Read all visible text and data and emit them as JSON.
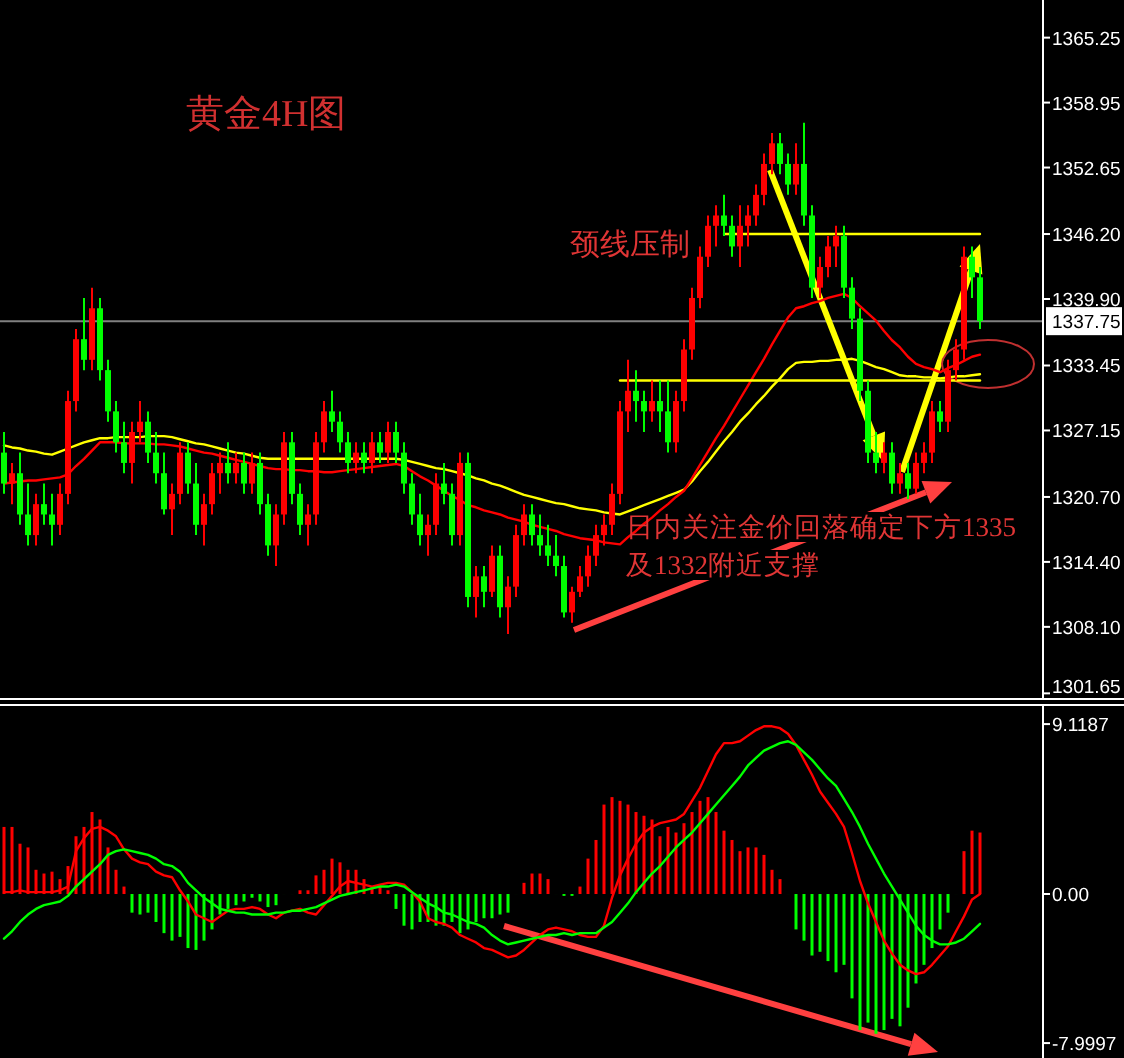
{
  "chart_data": [
    {
      "type": "candlestick",
      "title": "黄金4H图",
      "tick_labels": "y",
      "grid": false,
      "categories": [
        null,
        null,
        null,
        null,
        null,
        null,
        null,
        null,
        null,
        null,
        null,
        null,
        null,
        null,
        null,
        null,
        null,
        null,
        null,
        null,
        null,
        null,
        null,
        null,
        null,
        null,
        null,
        null,
        null,
        null,
        null,
        null,
        null,
        null,
        null,
        null,
        null,
        null,
        null,
        null,
        null,
        null,
        null,
        null,
        null,
        null,
        null,
        null,
        null,
        null,
        null,
        null,
        null,
        null,
        null,
        null,
        null,
        null,
        null,
        null,
        null,
        null,
        null,
        null,
        null,
        null,
        null,
        null,
        null,
        null,
        null,
        null,
        null,
        null,
        null,
        null,
        null,
        null,
        null,
        null,
        null,
        null,
        null,
        null,
        null,
        null,
        null,
        null,
        null,
        null,
        null,
        null,
        null,
        null,
        null,
        null,
        null,
        null,
        null,
        null,
        null,
        null,
        null,
        null,
        null,
        null,
        null,
        null,
        null,
        null,
        null,
        null,
        null,
        null,
        null,
        null,
        null,
        null,
        null,
        null,
        null,
        null,
        null
      ],
      "colors": [
        "#00ff00",
        "#ff0000",
        "#00ff00",
        "#00ff00",
        "#ff0000",
        "#00ff00",
        "#00ff00",
        "#ff0000",
        "#ff0000",
        "#ff0000",
        "#00ff00",
        "#ff0000",
        "#00ff00",
        "#00ff00",
        "#00ff00",
        "#00ff00",
        "#ff0000",
        "#ff0000",
        "#00ff00",
        "#00ff00",
        "#00ff00",
        "#ff0000",
        "#ff0000",
        "#00ff00",
        "#00ff00",
        "#ff0000",
        "#ff0000",
        "#ff0000",
        "#00ff00",
        "#ff0000",
        "#00ff00",
        "#ff0000",
        "#00ff00",
        "#00ff00",
        "#ff0000",
        "#ff0000",
        "#00ff00",
        "#00ff00",
        "#ff0000",
        "#ff0000",
        "#ff0000",
        "#00ff00",
        "#00ff00",
        "#00ff00",
        "#ff0000",
        "#00ff00",
        "#ff0000",
        "#00ff00",
        "#ff0000",
        "#00ff00",
        "#00ff00",
        "#00ff00",
        "#00ff00",
        "#ff0000",
        "#ff0000",
        "#00ff00",
        "#00ff00",
        "#ff0000",
        "#00ff00",
        "#ff0000",
        "#00ff00",
        "#ff0000",
        "#00ff00",
        "#ff0000",
        "#ff0000",
        "#ff0000",
        "#00ff00",
        "#00ff00",
        "#00ff00",
        "#00ff00",
        "#00ff00",
        "#ff0000",
        "#ff0000",
        "#ff0000",
        "#ff0000",
        "#ff0000",
        "#ff0000",
        "#ff0000",
        "#ff0000",
        "#00ff00",
        "#00ff00",
        "#ff0000",
        "#00ff00",
        "#00ff00",
        "#ff0000",
        "#ff0000",
        "#ff0000",
        "#ff0000",
        "#ff0000",
        "#ff0000",
        "#00ff00",
        "#00ff00",
        "#ff0000",
        "#ff0000",
        "#ff0000",
        "#ff0000",
        "#ff0000",
        "#00ff00",
        "#00ff00",
        "#ff0000",
        "#00ff00",
        "#00ff00",
        "#ff0000",
        "#ff0000",
        "#ff0000",
        "#00ff00",
        "#00ff00",
        "#00ff00",
        "#00ff00",
        "#00ff00",
        "#ff0000",
        "#00ff00",
        "#ff0000",
        "#00ff00",
        "#ff0000",
        "#ff0000",
        "#ff0000",
        "#00ff00",
        "#ff0000",
        "#ff0000",
        "#ff0000",
        "#00ff00",
        "#00ff00"
      ],
      "ohlc": [
        [
          1325,
          1327,
          1321,
          1322
        ],
        [
          1322,
          1324,
          1320,
          1323
        ],
        [
          1323,
          1325,
          1318,
          1319
        ],
        [
          1319,
          1322,
          1316,
          1317
        ],
        [
          1317,
          1321,
          1316,
          1320
        ],
        [
          1320,
          1322,
          1318,
          1319
        ],
        [
          1319,
          1321,
          1316,
          1318
        ],
        [
          1318,
          1322,
          1317,
          1321
        ],
        [
          1321,
          1331,
          1320,
          1330
        ],
        [
          1330,
          1337,
          1329,
          1336
        ],
        [
          1336,
          1340,
          1333,
          1334
        ],
        [
          1334,
          1341,
          1333,
          1339
        ],
        [
          1339,
          1340,
          1332,
          1333
        ],
        [
          1333,
          1334,
          1328,
          1329
        ],
        [
          1329,
          1330,
          1325,
          1326
        ],
        [
          1326,
          1328,
          1323,
          1324
        ],
        [
          1324,
          1328,
          1322,
          1327
        ],
        [
          1327,
          1330,
          1326,
          1328
        ],
        [
          1328,
          1329,
          1324,
          1325
        ],
        [
          1325,
          1327,
          1322,
          1323
        ],
        [
          1323,
          1325,
          1319,
          1319.5
        ],
        [
          1319.5,
          1322,
          1317,
          1321
        ],
        [
          1321,
          1326,
          1320,
          1325
        ],
        [
          1325,
          1326,
          1321,
          1322
        ],
        [
          1322,
          1324,
          1317,
          1318
        ],
        [
          1318,
          1321,
          1316,
          1320
        ],
        [
          1320,
          1324,
          1319,
          1323
        ],
        [
          1323,
          1325,
          1321,
          1324
        ],
        [
          1324,
          1326,
          1322,
          1323
        ],
        [
          1323,
          1325,
          1322,
          1324
        ],
        [
          1324,
          1325,
          1321,
          1322
        ],
        [
          1322,
          1325,
          1321,
          1324
        ],
        [
          1324,
          1325,
          1319,
          1320
        ],
        [
          1320,
          1321,
          1315,
          1316
        ],
        [
          1316,
          1320,
          1314,
          1319
        ],
        [
          1319,
          1327,
          1318,
          1326
        ],
        [
          1326,
          1327,
          1320,
          1321
        ],
        [
          1321,
          1322,
          1317,
          1318
        ],
        [
          1318,
          1320,
          1316,
          1319
        ],
        [
          1319,
          1327,
          1318,
          1326
        ],
        [
          1326,
          1330,
          1325,
          1329
        ],
        [
          1329,
          1331,
          1327,
          1328
        ],
        [
          1328,
          1329,
          1325,
          1326
        ],
        [
          1326,
          1327,
          1323,
          1324
        ],
        [
          1324,
          1326,
          1323,
          1325
        ],
        [
          1325,
          1326,
          1323,
          1324
        ],
        [
          1324,
          1327,
          1323,
          1326
        ],
        [
          1326,
          1327,
          1324,
          1325
        ],
        [
          1325,
          1328,
          1324,
          1327
        ],
        [
          1327,
          1328,
          1324,
          1325
        ],
        [
          1325,
          1326,
          1321,
          1322
        ],
        [
          1322,
          1323,
          1318,
          1319
        ],
        [
          1319,
          1321,
          1316,
          1317
        ],
        [
          1317,
          1319,
          1315,
          1318
        ],
        [
          1318,
          1323,
          1317,
          1322
        ],
        [
          1322,
          1324,
          1320,
          1321
        ],
        [
          1321,
          1322,
          1316,
          1317
        ],
        [
          1317,
          1325,
          1316,
          1324
        ],
        [
          1324,
          1325,
          1310,
          1311
        ],
        [
          1311,
          1314,
          1309,
          1313
        ],
        [
          1313,
          1314,
          1310,
          1311.5
        ],
        [
          1311.5,
          1316,
          1311,
          1315
        ],
        [
          1315,
          1316,
          1309,
          1310
        ],
        [
          1310,
          1313,
          1307.4,
          1312
        ],
        [
          1312,
          1318,
          1311,
          1317
        ],
        [
          1317,
          1320,
          1316,
          1319
        ],
        [
          1319,
          1320,
          1316,
          1317
        ],
        [
          1317,
          1319,
          1315,
          1316
        ],
        [
          1316,
          1318,
          1314,
          1315
        ],
        [
          1315,
          1317,
          1313,
          1314
        ],
        [
          1314,
          1315,
          1309,
          1309.5
        ],
        [
          1309.5,
          1312,
          1308.5,
          1311.5
        ],
        [
          1311.5,
          1314,
          1311,
          1313
        ],
        [
          1313,
          1316,
          1312,
          1315
        ],
        [
          1315,
          1318,
          1314,
          1317
        ],
        [
          1317,
          1319,
          1316,
          1318
        ],
        [
          1318,
          1322,
          1317,
          1321
        ],
        [
          1321,
          1330,
          1320,
          1329
        ],
        [
          1329,
          1334,
          1327,
          1331
        ],
        [
          1331,
          1333,
          1328,
          1330
        ],
        [
          1330,
          1331,
          1327,
          1329
        ],
        [
          1329,
          1332,
          1328,
          1330
        ],
        [
          1330,
          1332,
          1327,
          1329
        ],
        [
          1329,
          1332,
          1325,
          1326
        ],
        [
          1326,
          1331,
          1325,
          1330
        ],
        [
          1330,
          1336,
          1329,
          1335
        ],
        [
          1335,
          1341,
          1334,
          1340
        ],
        [
          1340,
          1345,
          1339,
          1344
        ],
        [
          1344,
          1348,
          1343,
          1347
        ],
        [
          1347,
          1349,
          1345,
          1348
        ],
        [
          1348,
          1350,
          1346,
          1347
        ],
        [
          1347,
          1348,
          1344,
          1345
        ],
        [
          1345,
          1349,
          1343,
          1347
        ],
        [
          1347,
          1349,
          1345,
          1348
        ],
        [
          1348,
          1351,
          1347,
          1350
        ],
        [
          1350,
          1354,
          1349,
          1353
        ],
        [
          1353,
          1356,
          1352,
          1355
        ],
        [
          1355,
          1356,
          1352,
          1353
        ],
        [
          1353,
          1354,
          1350,
          1351
        ],
        [
          1351,
          1355,
          1350,
          1353
        ],
        [
          1353,
          1357,
          1347,
          1348
        ],
        [
          1348,
          1349,
          1340,
          1341
        ],
        [
          1341,
          1344,
          1340,
          1343
        ],
        [
          1343,
          1346,
          1342,
          1345
        ],
        [
          1345,
          1347,
          1343,
          1346
        ],
        [
          1346,
          1347,
          1340,
          1341
        ],
        [
          1341,
          1342,
          1337,
          1338
        ],
        [
          1338,
          1339,
          1330,
          1331
        ],
        [
          1331,
          1332,
          1324,
          1325
        ],
        [
          1325,
          1327,
          1323,
          1324
        ],
        [
          1324,
          1326,
          1323,
          1325
        ],
        [
          1325,
          1326,
          1321,
          1322
        ],
        [
          1322,
          1324,
          1321,
          1323
        ],
        [
          1323,
          1324,
          1320.5,
          1321.5
        ],
        [
          1321.5,
          1325,
          1321,
          1324
        ],
        [
          1324,
          1326,
          1323,
          1325
        ],
        [
          1325,
          1330,
          1324,
          1329
        ],
        [
          1329,
          1330,
          1327,
          1328
        ],
        [
          1328,
          1334,
          1327,
          1333
        ],
        [
          1333,
          1336,
          1332,
          1335
        ],
        [
          1335,
          1345,
          1334,
          1344
        ],
        [
          1344,
          1345,
          1340,
          1342
        ],
        [
          1342,
          1343,
          1337,
          1337.75
        ]
      ],
      "series": [
        {
          "type": "line",
          "color": "#ffff00",
          "values": [
            1325.7,
            1325.5,
            1325.4,
            1325.2,
            1325.1,
            1324.9,
            1324.8,
            1325.1,
            1325.4,
            1325.7,
            1326.0,
            1326.2,
            1326.4,
            1326.4,
            1326.5,
            1326.5,
            1326.5,
            1326.5,
            1326.6,
            1326.6,
            1326.6,
            1326.5,
            1326.3,
            1326.1,
            1325.9,
            1325.8,
            1325.6,
            1325.4,
            1325.2,
            1325.0,
            1324.9,
            1324.7,
            1324.5,
            1324.4,
            1324.4,
            1324.4,
            1324.4,
            1324.4,
            1324.4,
            1324.4,
            1324.4,
            1324.4,
            1324.4,
            1324.4,
            1324.4,
            1324.4,
            1324.4,
            1324.4,
            1324.4,
            1324.4,
            1324.3,
            1324.1,
            1323.9,
            1323.7,
            1323.5,
            1323.4,
            1323.2,
            1323.0,
            1322.8,
            1322.5,
            1322.3,
            1322.0,
            1321.8,
            1321.5,
            1321.2,
            1320.9,
            1320.7,
            1320.5,
            1320.3,
            1320.1,
            1320.0,
            1319.8,
            1319.6,
            1319.5,
            1319.4,
            1319.2,
            1319.1,
            1319.0,
            1319.3,
            1319.6,
            1319.9,
            1320.2,
            1320.5,
            1320.8,
            1321.1,
            1321.4,
            1322.2,
            1323.2,
            1324.1,
            1325.1,
            1326.1,
            1327.0,
            1328.0,
            1328.8,
            1329.7,
            1330.5,
            1331.4,
            1332.2,
            1333.1,
            1333.7,
            1333.8,
            1333.8,
            1333.9,
            1333.9,
            1334.0,
            1334.0,
            1334.1,
            1333.9,
            1333.6,
            1333.3,
            1333.1,
            1332.8,
            1332.5,
            1332.4,
            1332.4,
            1332.3,
            1332.3,
            1332.2,
            1332.3,
            1332.4,
            1332.4,
            1332.5,
            1332.6
          ]
        },
        {
          "type": "line",
          "color": "#ff0000",
          "values": [
            1322.0,
            1322.1,
            1322.2,
            1322.3,
            1322.3,
            1322.4,
            1322.5,
            1322.6,
            1322.9,
            1323.7,
            1324.4,
            1325.2,
            1326.0,
            1326.0,
            1326.0,
            1325.9,
            1325.9,
            1325.9,
            1325.9,
            1325.8,
            1325.8,
            1325.7,
            1325.6,
            1325.4,
            1325.2,
            1325.0,
            1324.9,
            1324.7,
            1324.5,
            1324.3,
            1324.1,
            1323.9,
            1323.7,
            1323.5,
            1323.4,
            1323.4,
            1323.3,
            1323.3,
            1323.2,
            1323.2,
            1323.1,
            1323.1,
            1323.2,
            1323.3,
            1323.4,
            1323.5,
            1323.6,
            1323.7,
            1323.8,
            1323.9,
            1323.7,
            1323.2,
            1322.7,
            1322.3,
            1321.8,
            1321.3,
            1320.8,
            1320.4,
            1319.9,
            1319.7,
            1319.4,
            1319.2,
            1319.0,
            1318.7,
            1318.5,
            1318.3,
            1318.0,
            1317.8,
            1317.6,
            1317.4,
            1317.1,
            1316.9,
            1316.7,
            1316.6,
            1316.5,
            1316.3,
            1316.2,
            1316.1,
            1316.8,
            1317.4,
            1318.1,
            1318.7,
            1319.4,
            1320.0,
            1320.7,
            1321.3,
            1322.5,
            1323.8,
            1325.1,
            1326.4,
            1327.6,
            1328.9,
            1330.2,
            1331.5,
            1332.8,
            1334.1,
            1335.5,
            1336.8,
            1338.1,
            1339.0,
            1339.2,
            1339.5,
            1339.7,
            1340.0,
            1340.2,
            1340.4,
            1340.0,
            1339.2,
            1338.5,
            1337.8,
            1336.8,
            1335.9,
            1335.2,
            1334.3,
            1333.6,
            1333.3,
            1333.1,
            1332.8,
            1333.2,
            1333.5,
            1333.9,
            1334.3,
            1334.5
          ]
        },
        {
          "type": "line",
          "color": "#ffff00",
          "values": [
            null,
            null,
            null,
            null,
            null,
            null,
            null,
            null,
            null,
            null,
            null,
            null,
            null,
            null,
            null,
            null,
            null,
            null,
            null,
            null,
            null,
            null,
            null,
            null,
            null,
            null,
            null,
            null,
            null,
            null,
            null,
            null,
            null,
            null,
            null,
            null,
            null,
            null,
            null,
            null,
            null,
            null,
            null,
            null,
            null,
            null,
            null,
            null,
            null,
            null,
            null,
            null,
            null,
            null,
            null,
            null,
            null,
            null,
            null,
            null,
            null,
            null,
            null,
            null,
            null,
            null,
            null,
            null,
            null,
            null,
            null,
            null,
            null,
            null,
            null,
            null,
            null,
            null,
            null,
            null,
            null,
            null,
            null,
            null,
            null,
            null,
            null,
            null,
            null,
            null,
            1346.2,
            1346.2,
            1346.2,
            1346.2,
            1346.2,
            1346.2,
            1346.2,
            1346.2,
            1346.2,
            1346.2,
            1346.2,
            1346.2,
            1346.2,
            1346.2,
            1346.2,
            1346.2,
            1346.2,
            1346.2,
            1346.2,
            1346.2,
            1346.2,
            1346.2,
            1346.2,
            1346.2,
            1346.2,
            1346.2,
            1346.2,
            1346.2,
            1346.2,
            1346.2,
            1346.2,
            1346.2,
            1346.2
          ]
        },
        {
          "type": "line",
          "color": "#ffff00",
          "values": [
            null,
            null,
            null,
            null,
            null,
            null,
            null,
            null,
            null,
            null,
            null,
            null,
            null,
            null,
            null,
            null,
            null,
            null,
            null,
            null,
            null,
            null,
            null,
            null,
            null,
            null,
            null,
            null,
            null,
            null,
            null,
            null,
            null,
            null,
            null,
            null,
            null,
            null,
            null,
            null,
            null,
            null,
            null,
            null,
            null,
            null,
            null,
            null,
            null,
            null,
            null,
            null,
            null,
            null,
            null,
            null,
            null,
            null,
            null,
            null,
            null,
            null,
            null,
            null,
            null,
            null,
            null,
            null,
            null,
            null,
            null,
            null,
            null,
            null,
            null,
            null,
            null,
            1332,
            1332,
            1332,
            1332,
            1332,
            1332,
            1332,
            1332,
            1332,
            1332,
            1332,
            1332,
            1332,
            1332,
            1332,
            1332,
            1332,
            1332,
            1332,
            1332,
            1332,
            1332,
            1332,
            1332,
            1332,
            1332,
            1332,
            1332,
            1332,
            1332,
            1332,
            1332,
            1332,
            1332,
            1332,
            1332,
            1332,
            1332,
            1332,
            1332,
            1332,
            1332,
            1332,
            1332,
            1332,
            1332
          ]
        }
      ],
      "ylim": [
        1301.2,
        1368.9
      ],
      "yticks": [
        1365.25,
        1358.95,
        1352.65,
        {
          "value": 1346.2,
          "label": "1346.20"
        },
        {
          "value": 1339.9,
          "label": "1339.90"
        },
        1333.45,
        1327.15,
        {
          "value": 1320.7,
          "label": "1320.70"
        },
        {
          "value": 1314.4,
          "label": "1314.40"
        },
        {
          "value": 1308.1,
          "label": "1308.10"
        },
        1301.65
      ],
      "ref_lines": [
        {
          "axis": "y",
          "value": 1337.75,
          "label": "1337.75",
          "color": "#808080"
        }
      ],
      "annotations": [
        "颈线压制",
        "日内关注金价回落确定下方1335及1332附近支撑"
      ]
    },
    {
      "type": "bar",
      "tick_labels": "y",
      "grid": false,
      "categories": [
        null,
        null,
        null,
        null,
        null,
        null,
        null,
        null,
        null,
        null,
        null,
        null,
        null,
        null,
        null,
        null,
        null,
        null,
        null,
        null,
        null,
        null,
        null,
        null,
        null,
        null,
        null,
        null,
        null,
        null,
        null,
        null,
        null,
        null,
        null,
        null,
        null,
        null,
        null,
        null,
        null,
        null,
        null,
        null,
        null,
        null,
        null,
        null,
        null,
        null,
        null,
        null,
        null,
        null,
        null,
        null,
        null,
        null,
        null,
        null,
        null,
        null,
        null,
        null,
        null,
        null,
        null,
        null,
        null,
        null,
        null,
        null,
        null,
        null,
        null,
        null,
        null,
        null,
        null,
        null,
        null,
        null,
        null,
        null,
        null,
        null,
        null,
        null,
        null,
        null,
        null,
        null,
        null,
        null,
        null,
        null,
        null,
        null,
        null,
        null,
        null,
        null,
        null,
        null,
        null,
        null,
        null,
        null,
        null,
        null,
        null,
        null,
        null,
        null,
        null,
        null,
        null,
        null,
        null,
        null,
        null,
        null,
        null
      ],
      "series": [
        {
          "values": [
            3.6,
            3.6,
            2.7,
            2.5,
            1.3,
            1.1,
            1.2,
            0.8,
            1.5,
            3.1,
            3.6,
            4.4,
            4.0,
            2.5,
            1.3,
            0.4,
            -1.0,
            -1.1,
            -1.0,
            -1.5,
            -2.1,
            -2.5,
            -2.3,
            -2.9,
            -3.0,
            -2.5,
            -1.9,
            -1.1,
            -0.8,
            -0.6,
            -0.4,
            -0.2,
            -0.4,
            -0.7,
            -0.6,
            0,
            0,
            0.2,
            0.2,
            1.0,
            1.3,
            1.9,
            1.7,
            1.3,
            1.3,
            0.8,
            0.4,
            0.4,
            0.2,
            -0.8,
            -1.7,
            -1.9,
            -1.5,
            -1.5,
            -1.7,
            -1.7,
            -1.5,
            -2.1,
            -1.9,
            -1.5,
            -1.3,
            -1.3,
            -1.1,
            -1.0,
            0,
            0.6,
            1.1,
            1.1,
            0.8,
            0,
            -0.1,
            -0.1,
            0.4,
            1.9,
            2.9,
            4.8,
            5.2,
            5.0,
            4.8,
            4.4,
            4.2,
            4.0,
            3.1,
            3.6,
            3.3,
            3.8,
            4.4,
            5.0,
            5.2,
            4.4,
            3.4,
            2.9,
            2.3,
            2.5,
            2.5,
            2.1,
            1.3,
            0.8,
            0,
            -1.9,
            -2.5,
            -3.3,
            -3.1,
            -3.6,
            -4.2,
            -3.8,
            -5.6,
            -7.3,
            -6.9,
            -7.5,
            -7.3,
            -6.7,
            -7.1,
            -6.1,
            -4.8,
            -3.8,
            -2.9,
            -1.9,
            -1.0,
            0,
            2.3,
            3.4,
            3.3
          ],
          "colors": [
            "#ff0000",
            "#ff0000",
            "#ff0000",
            "#ff0000",
            "#ff0000",
            "#ff0000",
            "#ff0000",
            "#ff0000",
            "#ff0000",
            "#ff0000",
            "#ff0000",
            "#ff0000",
            "#ff0000",
            "#ff0000",
            "#ff0000",
            "#ff0000",
            "#00ff00",
            "#00ff00",
            "#00ff00",
            "#00ff00",
            "#00ff00",
            "#00ff00",
            "#00ff00",
            "#00ff00",
            "#00ff00",
            "#00ff00",
            "#00ff00",
            "#00ff00",
            "#00ff00",
            "#00ff00",
            "#00ff00",
            "#00ff00",
            "#00ff00",
            "#00ff00",
            "#00ff00",
            "#00ff00",
            "#00ff00",
            "#ff0000",
            "#ff0000",
            "#ff0000",
            "#ff0000",
            "#ff0000",
            "#ff0000",
            "#ff0000",
            "#ff0000",
            "#ff0000",
            "#ff0000",
            "#ff0000",
            "#ff0000",
            "#00ff00",
            "#00ff00",
            "#00ff00",
            "#00ff00",
            "#00ff00",
            "#00ff00",
            "#00ff00",
            "#00ff00",
            "#00ff00",
            "#00ff00",
            "#00ff00",
            "#00ff00",
            "#00ff00",
            "#00ff00",
            "#00ff00",
            "#00ff00",
            "#ff0000",
            "#ff0000",
            "#ff0000",
            "#ff0000",
            "#00ff00",
            "#00ff00",
            "#00ff00",
            "#ff0000",
            "#ff0000",
            "#ff0000",
            "#ff0000",
            "#ff0000",
            "#ff0000",
            "#ff0000",
            "#ff0000",
            "#ff0000",
            "#ff0000",
            "#ff0000",
            "#ff0000",
            "#ff0000",
            "#ff0000",
            "#ff0000",
            "#ff0000",
            "#ff0000",
            "#ff0000",
            "#ff0000",
            "#ff0000",
            "#ff0000",
            "#ff0000",
            "#ff0000",
            "#ff0000",
            "#ff0000",
            "#ff0000",
            "#00ff00",
            "#00ff00",
            "#00ff00",
            "#00ff00",
            "#00ff00",
            "#00ff00",
            "#00ff00",
            "#00ff00",
            "#00ff00",
            "#00ff00",
            "#00ff00",
            "#00ff00",
            "#00ff00",
            "#00ff00",
            "#00ff00",
            "#00ff00",
            "#00ff00",
            "#00ff00",
            "#00ff00",
            "#00ff00",
            "#00ff00",
            "#00ff00",
            "#ff0000",
            "#ff0000",
            "#ff0000"
          ]
        },
        {
          "type": "line",
          "color": "#ff0000",
          "values": [
            0.1,
            0.1,
            0.2,
            0.1,
            0.1,
            0.1,
            0.1,
            0.2,
            0.4,
            2.3,
            3.0,
            3.5,
            3.6,
            3.4,
            3.1,
            2.4,
            1.9,
            1.7,
            1.6,
            1.2,
            1.0,
            0.9,
            0.2,
            -0.4,
            -1.1,
            -1.3,
            -1.5,
            -1.2,
            -0.9,
            -0.8,
            -0.8,
            -0.7,
            -0.8,
            -1.1,
            -1.3,
            -1.0,
            -0.9,
            -0.8,
            -1.0,
            -1.1,
            -0.6,
            -0.1,
            0.4,
            0.7,
            0.6,
            0.5,
            0.4,
            0.5,
            0.6,
            0.6,
            0.5,
            0.1,
            -0.4,
            -1.3,
            -1.5,
            -1.6,
            -1.8,
            -2.2,
            -2.4,
            -2.6,
            -2.9,
            -3.0,
            -3.2,
            -3.4,
            -3.3,
            -3.0,
            -2.6,
            -2.2,
            -1.9,
            -1.8,
            -1.9,
            -2.0,
            -2.2,
            -2.3,
            -2.3,
            -1.7,
            -0.2,
            1.0,
            1.9,
            2.7,
            3.3,
            3.6,
            3.8,
            3.9,
            4.0,
            4.3,
            5.0,
            5.7,
            6.6,
            7.5,
            8.1,
            8.1,
            8.2,
            8.5,
            8.8,
            9.0,
            9.0,
            8.9,
            8.6,
            8.0,
            7.2,
            6.4,
            5.5,
            4.9,
            4.3,
            3.6,
            2.2,
            0.7,
            -0.5,
            -1.5,
            -2.5,
            -3.2,
            -3.8,
            -4.1,
            -4.3,
            -4.2,
            -3.8,
            -3.3,
            -2.8,
            -2.0,
            -1.2,
            -0.3,
            0.0
          ]
        },
        {
          "type": "line",
          "color": "#00ff00",
          "values": [
            -2.4,
            -2.0,
            -1.5,
            -1.1,
            -0.8,
            -0.6,
            -0.5,
            -0.4,
            -0.1,
            0.4,
            0.8,
            1.2,
            1.6,
            2.1,
            2.3,
            2.4,
            2.3,
            2.2,
            2.1,
            1.9,
            1.6,
            1.5,
            1.2,
            0.6,
            0.2,
            -0.2,
            -0.5,
            -0.8,
            -0.9,
            -1.0,
            -1.0,
            -1.1,
            -1.1,
            -1.1,
            -1.0,
            -1.0,
            -0.9,
            -0.9,
            -0.8,
            -0.7,
            -0.5,
            -0.3,
            -0.1,
            0.0,
            0.1,
            0.2,
            0.3,
            0.4,
            0.4,
            0.5,
            0.4,
            0.1,
            -0.2,
            -0.5,
            -0.7,
            -1.0,
            -1.1,
            -1.3,
            -1.5,
            -1.6,
            -1.8,
            -2.2,
            -2.5,
            -2.7,
            -2.6,
            -2.5,
            -2.4,
            -2.3,
            -2.2,
            -2.2,
            -2.1,
            -2.2,
            -2.1,
            -2.1,
            -2.1,
            -1.8,
            -1.5,
            -1.0,
            -0.5,
            0.1,
            0.6,
            1.1,
            1.5,
            2.0,
            2.5,
            2.9,
            3.3,
            3.8,
            4.3,
            4.8,
            5.3,
            5.8,
            6.3,
            6.9,
            7.3,
            7.7,
            7.9,
            8.1,
            8.2,
            8.0,
            7.6,
            7.2,
            6.7,
            6.2,
            5.8,
            5.1,
            4.4,
            3.6,
            2.7,
            1.9,
            1.1,
            0.4,
            -0.3,
            -1.0,
            -1.7,
            -2.2,
            -2.5,
            -2.7,
            -2.7,
            -2.6,
            -2.4,
            -2.0,
            -1.6
          ]
        }
      ],
      "ylim": [
        -8.8,
        10.09
      ],
      "yticks": [
        9.1187,
        {
          "value": 0,
          "label": "0.00"
        },
        -7.9997
      ]
    }
  ]
}
